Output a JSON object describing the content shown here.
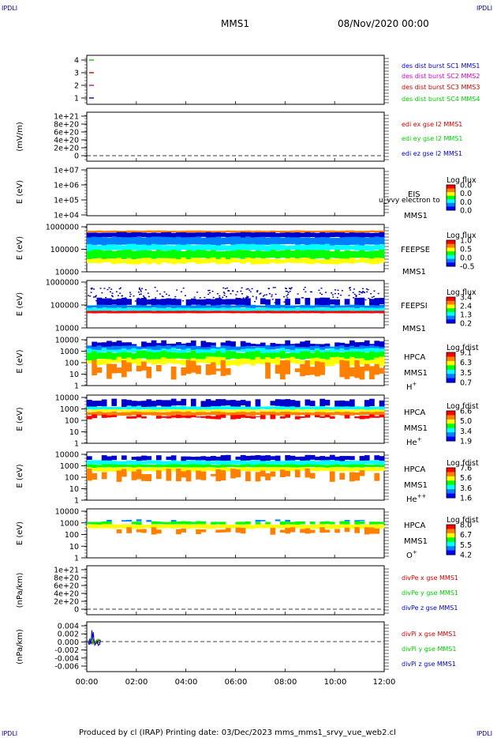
{
  "corner_tag": "IPDLI",
  "header": {
    "title": "MMS1",
    "date": "08/Nov/2020 00:00"
  },
  "footer": {
    "text": "Produced by cl (IRAP)   Printing date: 03/Dec/2023   mms_mms1_srvy_vue_web2.cl"
  },
  "colors": {
    "blue": "#0000cc",
    "magenta": "#cc00cc",
    "red": "#cc0000",
    "green": "#00cc00",
    "cmap": [
      "#0000ff",
      "#0080ff",
      "#00ffff",
      "#00ff00",
      "#ffff00",
      "#ff8000",
      "#ff0000"
    ]
  },
  "time_axis": {
    "ticks": [
      "00:00",
      "02:00",
      "04:00",
      "06:00",
      "08:00",
      "10:00",
      "12:00"
    ]
  },
  "panels": {
    "dist": {
      "ticks": [
        "4",
        "3",
        "2",
        "1"
      ],
      "legend": [
        "des dist burst SC1 MMS1",
        "des dist burst SC2 MMS2",
        "des dist burst SC3 MMS3",
        "des dist burst SC4 MMS4"
      ]
    },
    "edi": {
      "ylabel": "(mV/m)",
      "ticks": [
        "1e+21",
        "8e+20",
        "6e+20",
        "4e+20",
        "2e+20",
        "0"
      ],
      "legend": [
        "edi ex gse l2 MMS1",
        "edi ey gse l2 MMS1",
        "edi ez gse l2 MMS1"
      ]
    },
    "eis": {
      "ylabel": "E (eV)",
      "ticks": [
        "1e+07",
        "1e+06",
        "1e+05",
        "1e+04"
      ],
      "name": "EIS",
      "sc": "MMS1",
      "overlay": "ExTOF proton",
      "overlay2": "u_vvy electron to",
      "cbar_title": "Log flux",
      "cbar_ticks": [
        "0.0",
        "0.0",
        "0.0",
        "0.0"
      ]
    },
    "feepse": {
      "ylabel": "E (eV)",
      "ticks": [
        "1000000",
        "100000",
        "10000"
      ],
      "name": "FEEPSE",
      "sc": "MMS1",
      "cbar_title": "Log flux",
      "cbar_ticks": [
        "1.0",
        "0.5",
        "0.0",
        "-0.5"
      ]
    },
    "feepsi": {
      "ylabel": "E (eV)",
      "ticks": [
        "1000000",
        "100000",
        "10000"
      ],
      "name": "FEEPSI",
      "sc": "MMS1",
      "cbar_title": "Log flux",
      "cbar_ticks": [
        "3.4",
        "2.4",
        "1.3",
        "0.2"
      ]
    },
    "hpca_h": {
      "ylabel": "E (eV)",
      "ticks": [
        "10000",
        "1000",
        "100",
        "10",
        "1"
      ],
      "name": "HPCA",
      "sc": "MMS1",
      "ion": "H",
      "charge": "+",
      "cbar_title": "Log fdist",
      "cbar_ticks": [
        "9.1",
        "6.3",
        "3.5",
        "0.7"
      ]
    },
    "hpca_he": {
      "ylabel": "E (eV)",
      "ticks": [
        "10000",
        "1000",
        "100",
        "10",
        "1"
      ],
      "name": "HPCA",
      "sc": "MMS1",
      "ion": "He",
      "charge": "+",
      "cbar_title": "Log fdist",
      "cbar_ticks": [
        "6.6",
        "5.0",
        "3.4",
        "1.9"
      ]
    },
    "hpca_hepp": {
      "ylabel": "E (eV)",
      "ticks": [
        "10000",
        "1000",
        "100",
        "10",
        "1"
      ],
      "name": "HPCA",
      "sc": "MMS1",
      "ion": "He",
      "charge": "++",
      "cbar_title": "Log fdist",
      "cbar_ticks": [
        "7.6",
        "5.6",
        "3.6",
        "1.6"
      ]
    },
    "hpca_o": {
      "ylabel": "E (eV)",
      "ticks": [
        "10000",
        "1000",
        "100",
        "10",
        "1"
      ],
      "name": "HPCA",
      "sc": "MMS1",
      "ion": "O",
      "charge": "+",
      "cbar_title": "Log fdist",
      "cbar_ticks": [
        "8.0",
        "6.7",
        "5.5",
        "4.2"
      ]
    },
    "divpe": {
      "ylabel": "(nPa/km)",
      "ticks": [
        "1e+21",
        "8e+20",
        "6e+20",
        "4e+20",
        "2e+20",
        "0"
      ],
      "legend": [
        "divPe x gse MMS1",
        "divPe y gse MMS1",
        "divPe z gse MMS1"
      ]
    },
    "divpi": {
      "ylabel": "(nPa/km)",
      "ticks": [
        "0.004",
        "0.002",
        "0.000",
        "-0.002",
        "-0.004",
        "-0.006"
      ],
      "legend": [
        "divPi x gse MMS1",
        "divPi y gse MMS1",
        "divPi z gse MMS1"
      ]
    }
  },
  "chart_data": {
    "type": "heatmap",
    "title": "MMS1",
    "date": "08/Nov/2020 00:00",
    "x_range": [
      "00:00",
      "12:00"
    ],
    "x_ticks": [
      "00:00",
      "02:00",
      "04:00",
      "06:00",
      "08:00",
      "10:00",
      "12:00"
    ],
    "spectrograms": [
      {
        "name": "FEEPSE MMS1",
        "ylabel": "E (eV)",
        "y_scale": "log",
        "ylim": [
          10000,
          1000000
        ],
        "colorbar": "Log flux",
        "color_range": [
          -0.5,
          1.0
        ]
      },
      {
        "name": "FEEPSI MMS1",
        "ylabel": "E (eV)",
        "y_scale": "log",
        "ylim": [
          10000,
          1000000
        ],
        "colorbar": "Log flux",
        "color_range": [
          0.2,
          3.4
        ]
      },
      {
        "name": "HPCA MMS1 H+",
        "ylabel": "E (eV)",
        "y_scale": "log",
        "ylim": [
          1,
          10000
        ],
        "colorbar": "Log fdist",
        "color_range": [
          0.7,
          9.1
        ]
      },
      {
        "name": "HPCA MMS1 He+",
        "ylabel": "E (eV)",
        "y_scale": "log",
        "ylim": [
          1,
          10000
        ],
        "colorbar": "Log fdist",
        "color_range": [
          1.9,
          6.6
        ]
      },
      {
        "name": "HPCA MMS1 He++",
        "ylabel": "E (eV)",
        "y_scale": "log",
        "ylim": [
          1,
          10000
        ],
        "colorbar": "Log fdist",
        "color_range": [
          1.6,
          7.6
        ]
      },
      {
        "name": "HPCA MMS1 O+",
        "ylabel": "E (eV)",
        "y_scale": "log",
        "ylim": [
          1,
          10000
        ],
        "colorbar": "Log fdist",
        "color_range": [
          4.2,
          8.0
        ]
      }
    ],
    "line_panels": [
      {
        "name": "des dist burst",
        "ylim": [
          1,
          4
        ],
        "series": [
          "SC1 MMS1",
          "SC2 MMS2",
          "SC3 MMS3",
          "SC4 MMS4"
        ]
      },
      {
        "name": "edi e gse l2 MMS1",
        "ylabel": "(mV/m)",
        "ylim": [
          0,
          1e+21
        ],
        "series": [
          "ex",
          "ey",
          "ez"
        ]
      },
      {
        "name": "divPe gse MMS1",
        "ylabel": "(nPa/km)",
        "ylim": [
          0,
          1e+21
        ],
        "series": [
          "x",
          "y",
          "z"
        ]
      },
      {
        "name": "divPi gse MMS1",
        "ylabel": "(nPa/km)",
        "ylim": [
          -0.006,
          0.004
        ],
        "series": [
          "x",
          "y",
          "z"
        ]
      }
    ]
  }
}
